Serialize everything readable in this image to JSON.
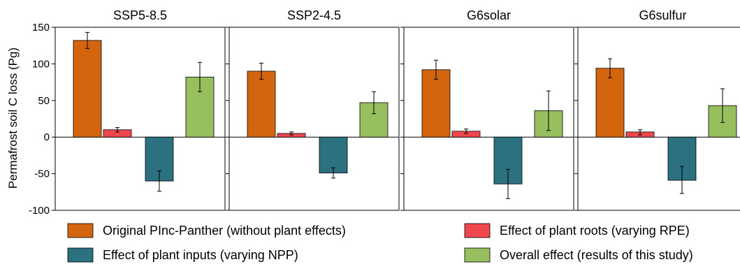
{
  "chart_data": {
    "type": "bar",
    "ylabel": "Permafrost soil C loss (Pg)",
    "ylim": [
      -100,
      150
    ],
    "yticks": [
      150,
      100,
      50,
      0,
      -50,
      -100
    ],
    "grid": false,
    "legend_position": "bottom",
    "series": [
      {
        "name": "Original PInc-Panther (without plant effects)",
        "color": "#d4650f"
      },
      {
        "name": "Effect of plant roots (varying RPE)",
        "color": "#f0474f"
      },
      {
        "name": "Effect of plant inputs (varying NPP)",
        "color": "#2b7180"
      },
      {
        "name": "Overall effect (results of this study)",
        "color": "#97bf5e"
      }
    ],
    "panels": [
      {
        "title": "SSP5-8.5",
        "values": [
          132,
          10,
          -60,
          82
        ],
        "errors": [
          [
            121,
            143
          ],
          [
            7,
            13
          ],
          [
            -74,
            -46
          ],
          [
            62,
            102
          ]
        ]
      },
      {
        "title": "SSP2-4.5",
        "values": [
          90,
          5,
          -49,
          47
        ],
        "errors": [
          [
            79,
            101
          ],
          [
            3,
            7
          ],
          [
            -56,
            -42
          ],
          [
            32,
            62
          ]
        ]
      },
      {
        "title": "G6solar",
        "values": [
          92,
          8,
          -64,
          36
        ],
        "errors": [
          [
            79,
            105
          ],
          [
            5,
            11
          ],
          [
            -84,
            -44
          ],
          [
            9,
            63
          ]
        ]
      },
      {
        "title": "G6sulfur",
        "values": [
          94,
          7,
          -59,
          43
        ],
        "errors": [
          [
            81,
            107
          ],
          [
            3,
            10
          ],
          [
            -77,
            -40
          ],
          [
            20,
            66
          ]
        ]
      }
    ]
  }
}
